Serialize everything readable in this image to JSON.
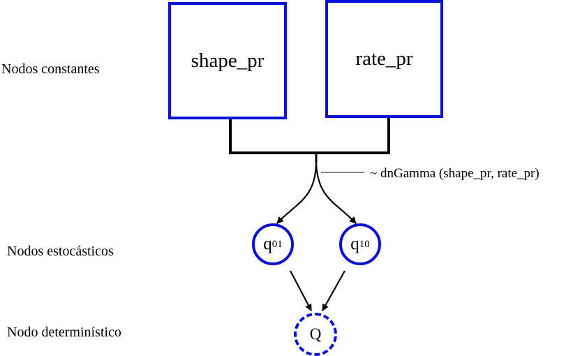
{
  "labels": {
    "constant_nodes": "Nodos constantes",
    "stochastic_nodes": "Nodos estocásticos",
    "deterministic_node": "Nodo determinístico"
  },
  "nodes": {
    "shape": "shape_pr",
    "rate": "rate_pr",
    "q01": {
      "base": "q",
      "sub": "01"
    },
    "q10": {
      "base": "q",
      "sub": "10"
    },
    "Q": "Q"
  },
  "distribution": "~ dnGamma (shape_pr, rate_pr)",
  "colors": {
    "node_border": "#0a12d6",
    "edge": "#000000"
  }
}
